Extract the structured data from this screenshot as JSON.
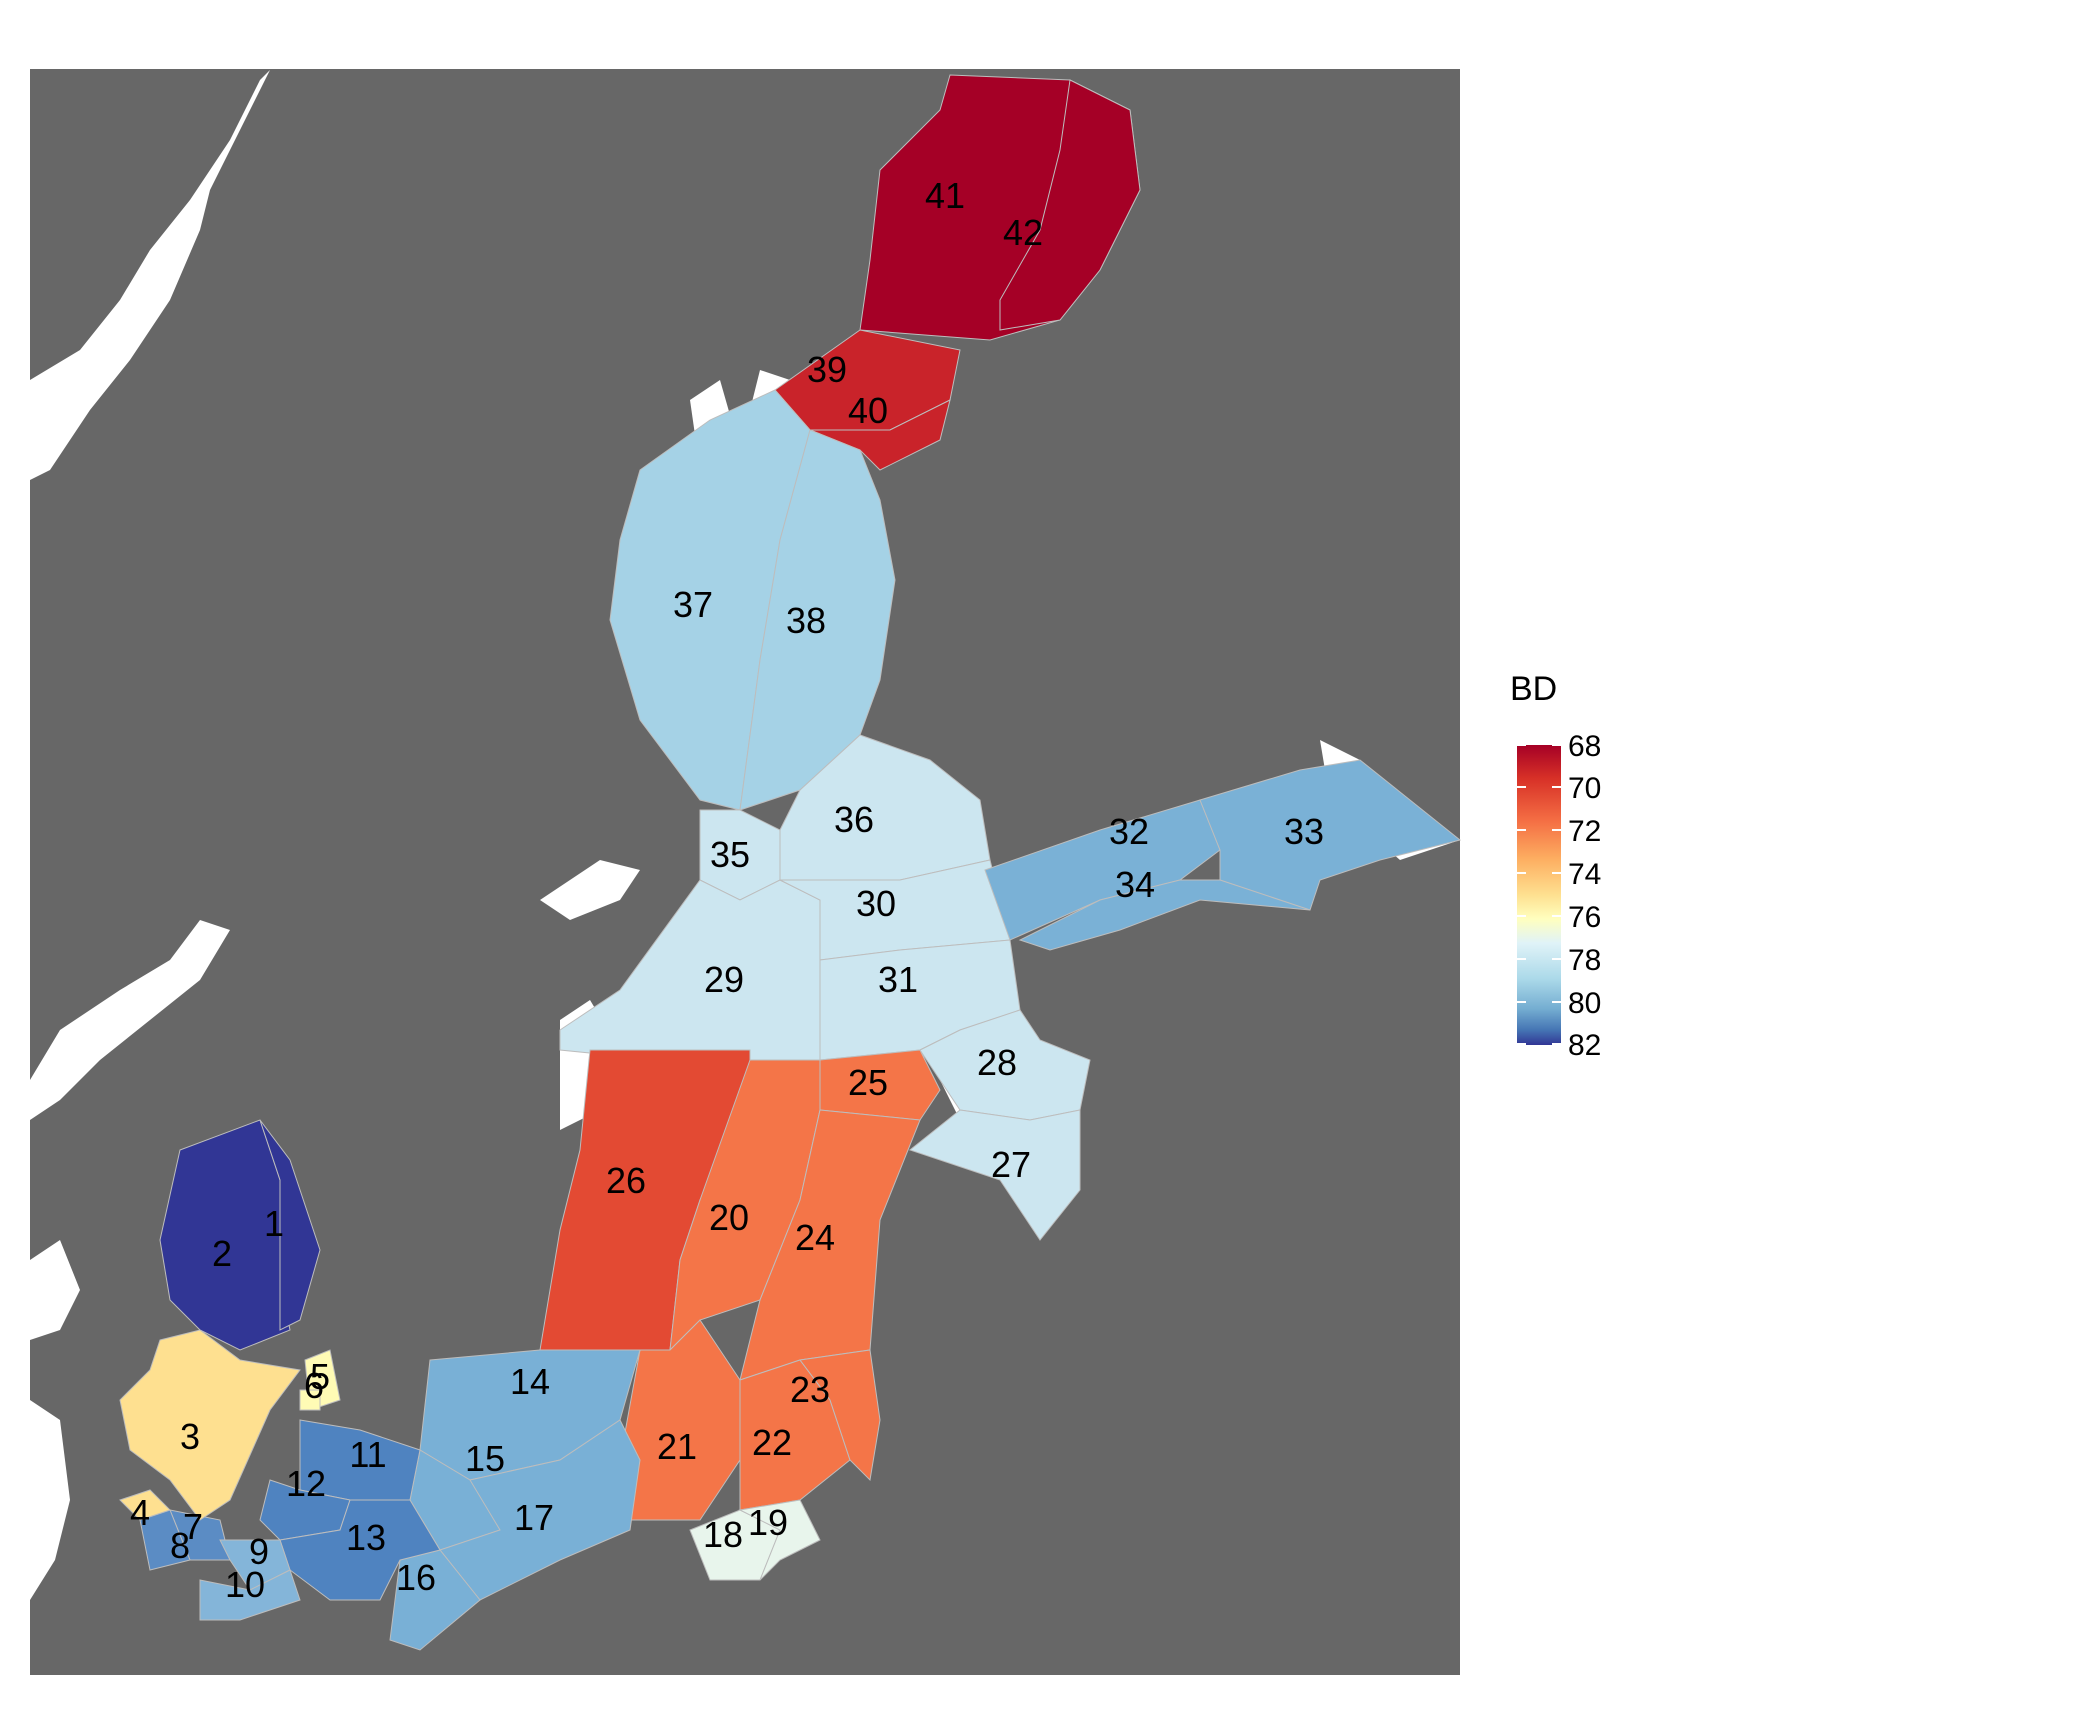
{
  "legend": {
    "title": "BD",
    "ticks": [
      "68",
      "70",
      "72",
      "74",
      "76",
      "78",
      "80",
      "82"
    ],
    "range": [
      68,
      82
    ],
    "scale": "diverging, red (low) to blue (high)",
    "colors": [
      "#a50026",
      "#d73027",
      "#f46d43",
      "#fdae61",
      "#fee090",
      "#e0f3f8",
      "#abd9e9",
      "#74add1",
      "#4575b4",
      "#313695"
    ]
  },
  "map": {
    "background_color": "#676767",
    "land_color": "#ffffff",
    "regions": [
      {
        "id": "1",
        "label": "1",
        "value": 82,
        "color": "#313695"
      },
      {
        "id": "2",
        "label": "2",
        "value": 82,
        "color": "#313695"
      },
      {
        "id": "3",
        "label": "3",
        "value": 74,
        "color": "#fee090"
      },
      {
        "id": "4",
        "label": "4",
        "value": 74,
        "color": "#fee090"
      },
      {
        "id": "5",
        "label": "5",
        "value": 75,
        "color": "#fffbb5"
      },
      {
        "id": "6",
        "label": "6",
        "value": 75,
        "color": "#fffbb5"
      },
      {
        "id": "7",
        "label": "7",
        "value": 79.5,
        "color": "#5b8cc4"
      },
      {
        "id": "8",
        "label": "8",
        "value": 79.5,
        "color": "#5b8cc4"
      },
      {
        "id": "9",
        "label": "9",
        "value": 78.5,
        "color": "#84b5d9"
      },
      {
        "id": "10",
        "label": "10",
        "value": 78.5,
        "color": "#84b5d9"
      },
      {
        "id": "11",
        "label": "11",
        "value": 79.8,
        "color": "#4f83c0"
      },
      {
        "id": "12",
        "label": "12",
        "value": 79.8,
        "color": "#4f83c0"
      },
      {
        "id": "13",
        "label": "13",
        "value": 79.8,
        "color": "#4f83c0"
      },
      {
        "id": "14",
        "label": "14",
        "value": 78.6,
        "color": "#79b0d6"
      },
      {
        "id": "15",
        "label": "15",
        "value": 78.6,
        "color": "#79b0d6"
      },
      {
        "id": "16",
        "label": "16",
        "value": 78.6,
        "color": "#79b0d6"
      },
      {
        "id": "17",
        "label": "17",
        "value": 78.6,
        "color": "#79b0d6"
      },
      {
        "id": "18",
        "label": "18",
        "value": 76.2,
        "color": "#e8f5ec"
      },
      {
        "id": "19",
        "label": "19",
        "value": 76.2,
        "color": "#e8f5ec"
      },
      {
        "id": "20",
        "label": "20",
        "value": 71.5,
        "color": "#f47548"
      },
      {
        "id": "21",
        "label": "21",
        "value": 71.5,
        "color": "#f47548"
      },
      {
        "id": "22",
        "label": "22",
        "value": 71.5,
        "color": "#f47548"
      },
      {
        "id": "23",
        "label": "23",
        "value": 71.5,
        "color": "#f47548"
      },
      {
        "id": "24",
        "label": "24",
        "value": 71.5,
        "color": "#f47548"
      },
      {
        "id": "25",
        "label": "25",
        "value": 71.5,
        "color": "#f47548"
      },
      {
        "id": "26",
        "label": "26",
        "value": 70.7,
        "color": "#e34a33"
      },
      {
        "id": "27",
        "label": "27",
        "value": 77.2,
        "color": "#cce6f0"
      },
      {
        "id": "28",
        "label": "28",
        "value": 77.2,
        "color": "#cce6f0"
      },
      {
        "id": "29",
        "label": "29",
        "value": 77.2,
        "color": "#cce6f0"
      },
      {
        "id": "30",
        "label": "30",
        "value": 77.2,
        "color": "#cce6f0"
      },
      {
        "id": "31",
        "label": "31",
        "value": 77.2,
        "color": "#cce6f0"
      },
      {
        "id": "32",
        "label": "32",
        "value": 78.6,
        "color": "#7ab1d6"
      },
      {
        "id": "33",
        "label": "33",
        "value": 78.6,
        "color": "#7ab1d6"
      },
      {
        "id": "34",
        "label": "34",
        "value": 78.6,
        "color": "#7ab1d6"
      },
      {
        "id": "35",
        "label": "35",
        "value": 77.2,
        "color": "#cce6f0"
      },
      {
        "id": "36",
        "label": "36",
        "value": 77.2,
        "color": "#cce6f0"
      },
      {
        "id": "37",
        "label": "37",
        "value": 77.8,
        "color": "#a5d2e6"
      },
      {
        "id": "38",
        "label": "38",
        "value": 77.8,
        "color": "#a5d2e6"
      },
      {
        "id": "39",
        "label": "39",
        "value": 69.3,
        "color": "#c9232a"
      },
      {
        "id": "40",
        "label": "40",
        "value": 69.3,
        "color": "#c9232a"
      },
      {
        "id": "41",
        "label": "41",
        "value": 68,
        "color": "#a50026"
      },
      {
        "id": "42",
        "label": "42",
        "value": 68,
        "color": "#a50026"
      }
    ]
  }
}
